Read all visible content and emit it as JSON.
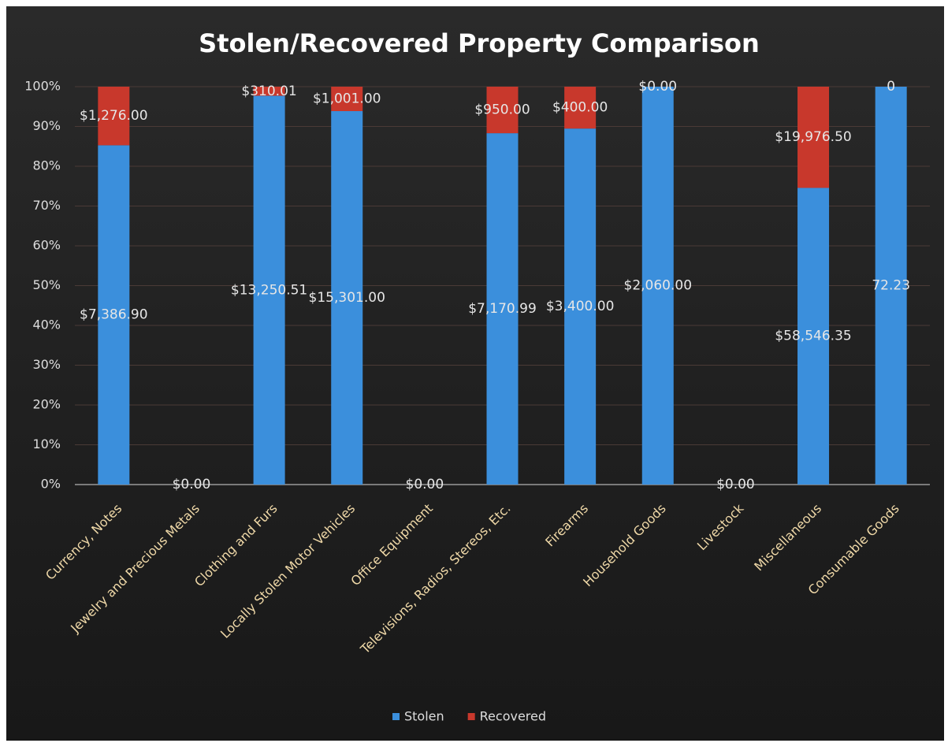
{
  "chart_data": {
    "type": "bar",
    "stacking": "percent",
    "title": "Stolen/Recovered Property Comparison",
    "categories": [
      "Currency, Notes",
      "Jewelry and Precious Metals",
      "Clothing and Furs",
      "Locally Stolen Motor Vehicles",
      "Office Equipment",
      "Televisions, Radios, Stereos, Etc.",
      "Firearms",
      "Household Goods",
      "Livestock",
      "Miscellaneous",
      "Consumable Goods"
    ],
    "series": [
      {
        "name": "Stolen",
        "color": "#3b8fdc",
        "values": [
          7386.9,
          0,
          13250.51,
          15301.0,
          0,
          7170.99,
          3400.0,
          2060.0,
          0,
          58546.35,
          72.23
        ],
        "value_labels": [
          "$7,386.90",
          "$0.00",
          "$13,250.51",
          "$15,301.00",
          "$0.00",
          "$7,170.99",
          "$3,400.00",
          "$2,060.00",
          "$0.00",
          "$58,546.35",
          "72.23"
        ]
      },
      {
        "name": "Recovered",
        "color": "#c8382c",
        "values": [
          1276.0,
          null,
          310.01,
          1001.0,
          null,
          950.0,
          400.0,
          0,
          null,
          19976.5,
          0
        ],
        "value_labels": [
          "$1,276.00",
          null,
          "$310.01",
          "$1,001.00",
          null,
          "$950.00",
          "$400.00",
          "$0.00",
          null,
          "$19,976.50",
          "0"
        ]
      }
    ],
    "ylim": [
      0,
      100
    ],
    "yticks": [
      {
        "value": 0,
        "label": "0%"
      },
      {
        "value": 10,
        "label": "10%"
      },
      {
        "value": 20,
        "label": "20%"
      },
      {
        "value": 30,
        "label": "30%"
      },
      {
        "value": 40,
        "label": "40%"
      },
      {
        "value": 50,
        "label": "50%"
      },
      {
        "value": 60,
        "label": "60%"
      },
      {
        "value": 70,
        "label": "70%"
      },
      {
        "value": 80,
        "label": "80%"
      },
      {
        "value": 90,
        "label": "90%"
      },
      {
        "value": 100,
        "label": "100%"
      }
    ],
    "grid": true,
    "legend": "bottom"
  }
}
